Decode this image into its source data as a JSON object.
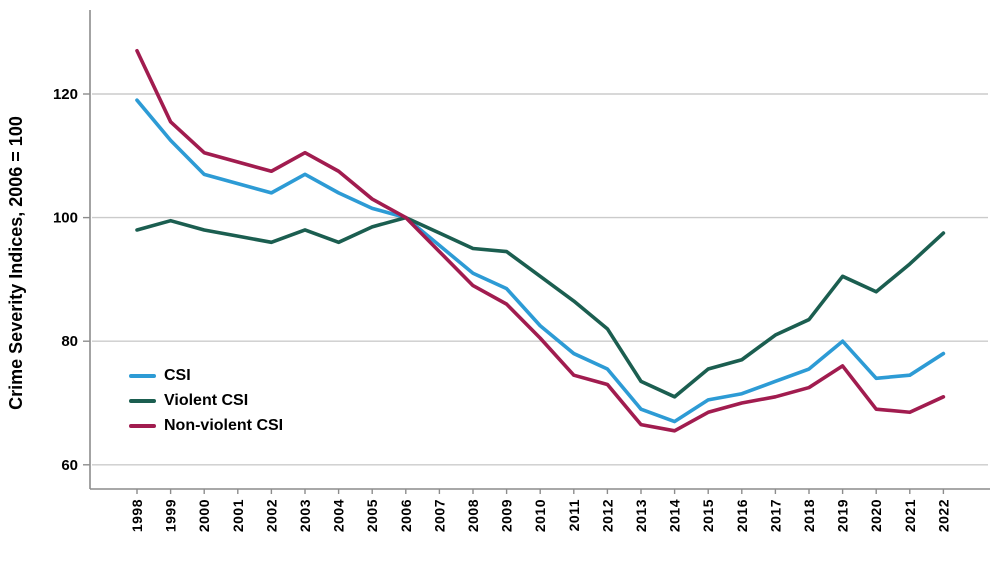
{
  "chart_data": {
    "type": "line",
    "title": "",
    "xlabel": "",
    "ylabel": "Crime Severity Indices, 2006 = 100",
    "ylim": [
      56,
      133
    ],
    "yticks": [
      60,
      80,
      100,
      120
    ],
    "grid": "horizontal",
    "legend_position": "inside-bottom-left",
    "gridline_color": "#cbcbcb",
    "axis_color": "#8c8c8c",
    "text_color": "#000000",
    "categories": [
      "1998",
      "1999",
      "2000",
      "2001",
      "2002",
      "2003",
      "2004",
      "2005",
      "2006",
      "2007",
      "2008",
      "2009",
      "2010",
      "2011",
      "2012",
      "2013",
      "2014",
      "2015",
      "2016",
      "2017",
      "2018",
      "2019",
      "2020",
      "2021",
      "2022"
    ],
    "series": [
      {
        "name": "CSI",
        "color": "#2d9bd5",
        "values": [
          119,
          112.5,
          107,
          105.5,
          104,
          107,
          104,
          101.5,
          100,
          95.5,
          91,
          88.5,
          82.5,
          78,
          75.5,
          69,
          67,
          70.5,
          71.5,
          73.5,
          75.5,
          80,
          74,
          74.5,
          78
        ]
      },
      {
        "name": "Violent CSI",
        "color": "#1b5e50",
        "values": [
          98,
          99.5,
          98,
          97,
          96,
          98,
          96,
          98.5,
          100,
          97.5,
          95,
          94.5,
          90.5,
          86.5,
          82,
          73.5,
          71,
          75.5,
          77,
          81,
          83.5,
          90.5,
          88,
          92.5,
          97.5
        ]
      },
      {
        "name": "Non-violent CSI",
        "color": "#a11c4f",
        "values": [
          127,
          115.5,
          110.5,
          109,
          107.5,
          110.5,
          107.5,
          103,
          100,
          94.5,
          89,
          86,
          80.5,
          74.5,
          73,
          66.5,
          65.5,
          68.5,
          70,
          71,
          72.5,
          76,
          69,
          68.5,
          71
        ]
      }
    ]
  }
}
